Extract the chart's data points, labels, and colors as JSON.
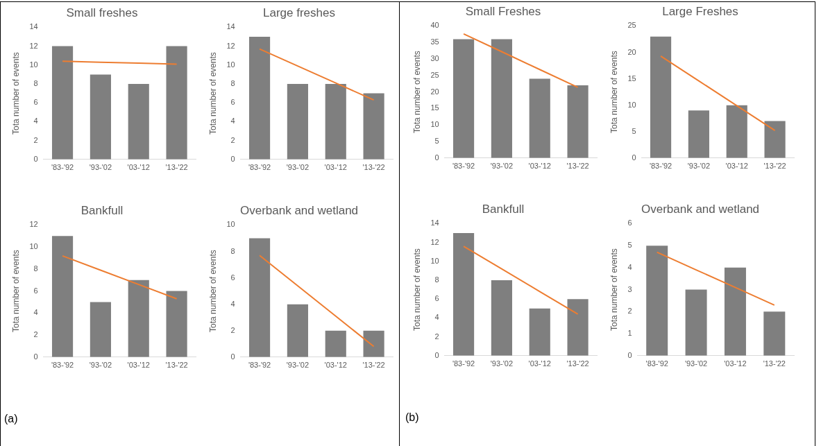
{
  "chart_data": [
    {
      "type": "bar",
      "title": "Small freshes",
      "ylabel": "Tota number of events",
      "categories": [
        "'83-'92",
        "'93-'02",
        "'03-'12",
        "'13-'22"
      ],
      "series": [
        {
          "color": "#7f7f7f",
          "values": [
            12,
            9,
            8,
            12
          ]
        },
        {
          "type": "line",
          "color": "#ed7d31",
          "values": [
            10.4,
            10.3,
            10.2,
            10.1
          ]
        }
      ],
      "ylim": [
        0,
        14
      ],
      "yticks": [
        0,
        2,
        4,
        6,
        8,
        10,
        12,
        14
      ],
      "marker": "none"
    },
    {
      "type": "bar",
      "title": "Large freshes",
      "ylabel": "Tota number of events",
      "categories": [
        "'83-'92",
        "'93-'02",
        "'03-'12",
        "'13-'22"
      ],
      "series": [
        {
          "color": "#7f7f7f",
          "values": [
            13,
            8,
            8,
            7
          ]
        },
        {
          "type": "line",
          "color": "#ed7d31",
          "values": [
            11.7,
            9.9,
            8.1,
            6.3
          ]
        }
      ],
      "ylim": [
        0,
        14
      ],
      "yticks": [
        0,
        2,
        4,
        6,
        8,
        10,
        12,
        14
      ],
      "marker": "none"
    },
    {
      "type": "bar",
      "title": "Bankfull",
      "ylabel": "Tota number of events",
      "categories": [
        "'83-'92",
        "'93-'02",
        "'03-'12",
        "'13-'22"
      ],
      "series": [
        {
          "color": "#7f7f7f",
          "values": [
            11,
            5,
            7,
            6
          ]
        },
        {
          "type": "line",
          "color": "#ed7d31",
          "values": [
            9.2,
            7.9,
            6.6,
            5.3
          ]
        }
      ],
      "ylim": [
        0,
        12
      ],
      "yticks": [
        0,
        2,
        4,
        6,
        8,
        10,
        12
      ],
      "marker": "none",
      "annotations": [
        "(a)"
      ]
    },
    {
      "type": "bar",
      "title": "Overbank and wetland",
      "ylabel": "Tota number of events",
      "categories": [
        "'83-'92",
        "'93-'02",
        "'03-'12",
        "'13-'22"
      ],
      "series": [
        {
          "color": "#7f7f7f",
          "values": [
            9,
            4,
            2,
            2
          ]
        },
        {
          "type": "line",
          "color": "#ed7d31",
          "values": [
            7.7,
            5.4,
            3.1,
            0.8
          ]
        }
      ],
      "ylim": [
        0,
        10
      ],
      "yticks": [
        0,
        2,
        4,
        6,
        8,
        10
      ],
      "marker": "none"
    },
    {
      "type": "bar",
      "title": "Small Freshes",
      "ylabel": "Tota number of events",
      "categories": [
        "'83-'92",
        "'93-'02",
        "'03-'12",
        "'13-'22"
      ],
      "series": [
        {
          "color": "#7f7f7f",
          "values": [
            36,
            36,
            24,
            22
          ]
        },
        {
          "type": "line",
          "color": "#ed7d31",
          "values": [
            37.6,
            32.2,
            26.8,
            21.4
          ]
        }
      ],
      "ylim": [
        0,
        40
      ],
      "yticks": [
        0,
        5,
        10,
        15,
        20,
        25,
        30,
        35,
        40
      ],
      "marker": "none"
    },
    {
      "type": "bar",
      "title": "Large Freshes",
      "ylabel": "Tota number of events",
      "categories": [
        "'83-'92",
        "'93-'02",
        "'03-'12",
        "'13-'22"
      ],
      "series": [
        {
          "color": "#7f7f7f",
          "values": [
            23,
            9,
            10,
            7
          ]
        },
        {
          "type": "line",
          "color": "#ed7d31",
          "values": [
            19.3,
            14.6,
            9.9,
            5.2
          ]
        }
      ],
      "ylim": [
        0,
        25
      ],
      "yticks": [
        0,
        5,
        10,
        15,
        20,
        25
      ],
      "marker": "none"
    },
    {
      "type": "bar",
      "title": "Bankfull",
      "ylabel": "Tota number of events",
      "categories": [
        "'83-'92",
        "'93-'02",
        "'03-'12",
        "'13-'22"
      ],
      "series": [
        {
          "color": "#7f7f7f",
          "values": [
            13,
            8,
            5,
            6
          ]
        },
        {
          "type": "line",
          "color": "#ed7d31",
          "values": [
            11.6,
            9.2,
            6.8,
            4.4
          ]
        }
      ],
      "ylim": [
        0,
        14
      ],
      "yticks": [
        0,
        2,
        4,
        6,
        8,
        10,
        12,
        14
      ],
      "marker": "none",
      "annotations": [
        "(b)"
      ]
    },
    {
      "type": "bar",
      "title": "Overbank and wetland",
      "ylabel": "Tota number of events",
      "categories": [
        "'83-'92",
        "'93-'02",
        "'03-'12",
        "'13-'22"
      ],
      "series": [
        {
          "color": "#7f7f7f",
          "values": [
            5,
            3,
            4,
            2
          ]
        },
        {
          "type": "line",
          "color": "#ed7d31",
          "values": [
            4.7,
            3.9,
            3.1,
            2.3
          ]
        }
      ],
      "ylim": [
        0,
        6
      ],
      "yticks": [
        0,
        1,
        2,
        3,
        4,
        5,
        6
      ],
      "marker": "none"
    }
  ]
}
